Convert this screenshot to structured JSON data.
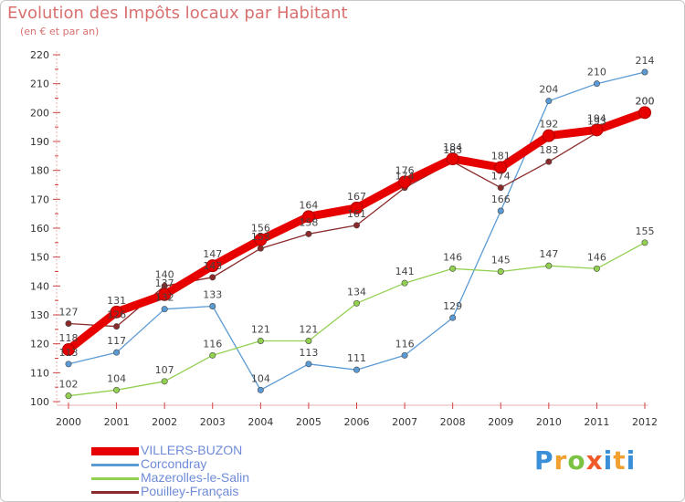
{
  "title": "Evolution des Impôts locaux par Habitant",
  "subtitle": "(en € et par an)",
  "logo": {
    "text": "Proxiti",
    "parts": [
      "P",
      "r",
      "o",
      "x",
      "i",
      "t",
      "i"
    ]
  },
  "chart_data": {
    "type": "line",
    "title": "Evolution des Impôts locaux par Habitant",
    "subtitle": "(en € et par an)",
    "xlabel": "",
    "ylabel": "",
    "ylim": [
      100,
      220
    ],
    "yticks": [
      100,
      110,
      120,
      130,
      140,
      150,
      160,
      170,
      180,
      190,
      200,
      210,
      220
    ],
    "categories": [
      "2000",
      "2001",
      "2002",
      "2003",
      "2004",
      "2005",
      "2006",
      "2007",
      "2008",
      "2009",
      "2010",
      "2011",
      "2012"
    ],
    "grid": "none",
    "legend_position": "bottom-left",
    "series": [
      {
        "name": "VILLERS-BUZON",
        "color": "#e60000",
        "style": "thick",
        "values": [
          118,
          131,
          137,
          147,
          156,
          164,
          167,
          176,
          184,
          181,
          192,
          194,
          200
        ]
      },
      {
        "name": "Corcondray",
        "color": "#5b9bd5",
        "style": "thin",
        "values": [
          113,
          117,
          132,
          133,
          104,
          113,
          111,
          116,
          129,
          166,
          204,
          210,
          214
        ]
      },
      {
        "name": "Mazerolles-le-Salin",
        "color": "#92d050",
        "style": "thin",
        "values": [
          102,
          104,
          107,
          116,
          121,
          121,
          134,
          141,
          146,
          145,
          147,
          146,
          155
        ]
      },
      {
        "name": "Pouilley-Français",
        "color": "#8b2a2a",
        "style": "thin",
        "values": [
          127,
          126,
          140,
          143,
          153,
          158,
          161,
          174,
          183,
          174,
          183,
          193,
          200
        ]
      }
    ]
  }
}
